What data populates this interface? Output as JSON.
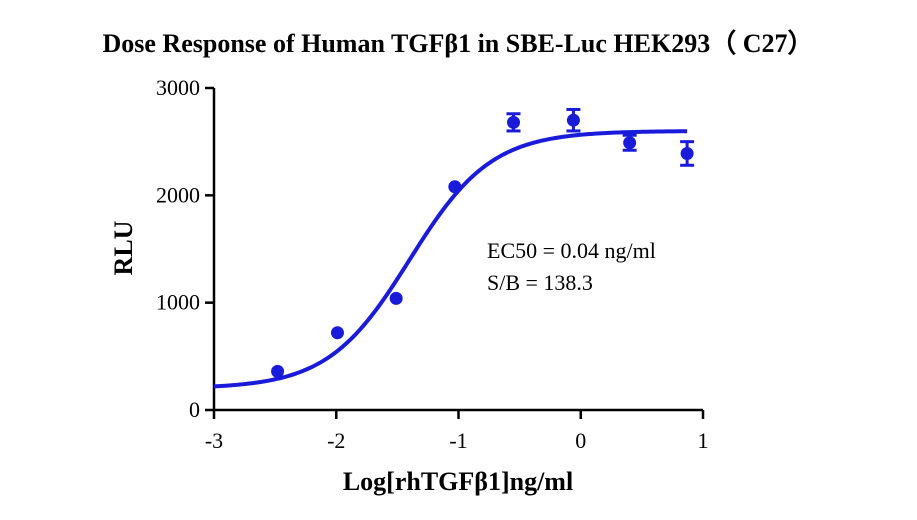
{
  "chart_data": {
    "type": "scatter",
    "title": "Dose Response of Human TGFβ1 in SBE-Luc HEK293（ C27）",
    "xlabel": "Log[rhTGFβ1]ng/ml",
    "ylabel": "RLU",
    "xlim": [
      -3,
      1
    ],
    "ylim": [
      0,
      3000
    ],
    "x_ticks": [
      -3,
      -2,
      -1,
      0,
      1
    ],
    "x_tick_labels": [
      "-3",
      "-2",
      "-1",
      "0",
      "1"
    ],
    "y_ticks": [
      0,
      1000,
      2000,
      3000
    ],
    "y_tick_labels": [
      "0",
      "1000",
      "2000",
      "3000"
    ],
    "grid": false,
    "points": [
      {
        "x": -2.48,
        "y": 360,
        "err": 0
      },
      {
        "x": -1.99,
        "y": 720,
        "err": 0
      },
      {
        "x": -1.51,
        "y": 1040,
        "err": 0
      },
      {
        "x": -1.03,
        "y": 2080,
        "err": 0
      },
      {
        "x": -0.55,
        "y": 2680,
        "err": 80
      },
      {
        "x": -0.06,
        "y": 2700,
        "err": 100
      },
      {
        "x": 0.4,
        "y": 2490,
        "err": 70
      },
      {
        "x": 0.87,
        "y": 2390,
        "err": 110
      }
    ],
    "fit_curve": {
      "bottom": 200,
      "top": 2600,
      "log_ec50": -1.4,
      "hill_slope": 1.3,
      "x_range": [
        -3,
        0.87
      ]
    },
    "annotations": [
      "EC50 = 0.04 ng/ml",
      "S/B = 138.3"
    ],
    "colors": {
      "series": "#1a1adb",
      "axis": "#000000"
    }
  }
}
